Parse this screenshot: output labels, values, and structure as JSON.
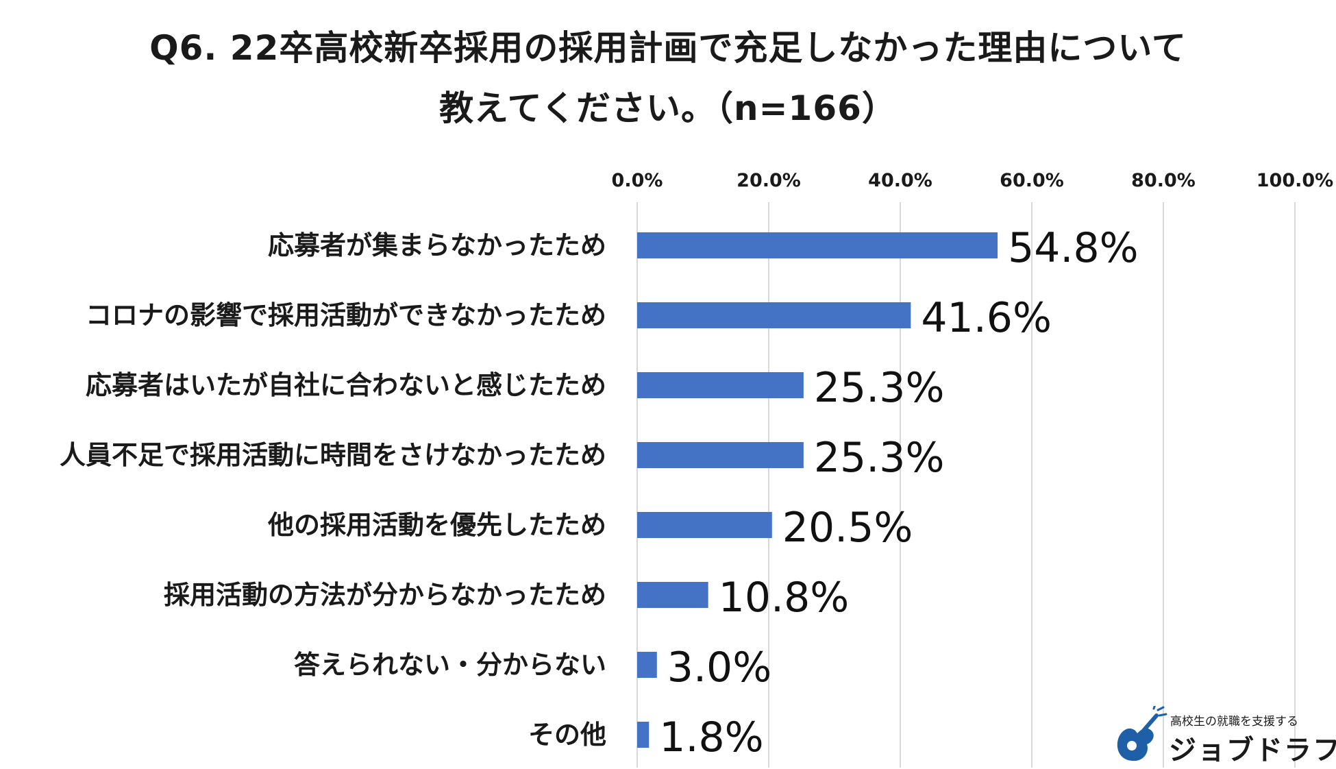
{
  "title": {
    "line1": "Q6. 22卒高校新卒採用の採用計画で充足しなかった理由について",
    "line2": "教えてください。（n=166）"
  },
  "chart_data": {
    "type": "bar",
    "orientation": "horizontal",
    "categories": [
      "応募者が集まらなかったため",
      "コロナの影響で採用活動ができなかったため",
      "応募者はいたが自社に合わないと感じたため",
      "人員不足で採用活動に時間をさけなかったため",
      "他の採用活動を優先したため",
      "採用活動の方法が分からなかったため",
      "答えられない・分からない",
      "その他"
    ],
    "values": [
      54.8,
      41.6,
      25.3,
      25.3,
      20.5,
      10.8,
      3.0,
      1.8
    ],
    "data_labels": [
      "54.8%",
      "41.6%",
      "25.3%",
      "25.3%",
      "20.5%",
      "10.8%",
      "3.0%",
      "1.8%"
    ],
    "xlim": [
      0,
      100
    ],
    "ticks": [
      0,
      20,
      40,
      60,
      80,
      100
    ],
    "tick_labels": [
      "0.0%",
      "20.0%",
      "40.0%",
      "60.0%",
      "80.0%",
      "100.0%"
    ],
    "axis_position": "top",
    "grid": true,
    "bar_color": "#4472C4"
  },
  "logo": {
    "tagline": "高校生の就職を支援する",
    "name": "ジョブドラフト",
    "icon": "guitar-mark-icon",
    "color": "#1f5fa8"
  }
}
